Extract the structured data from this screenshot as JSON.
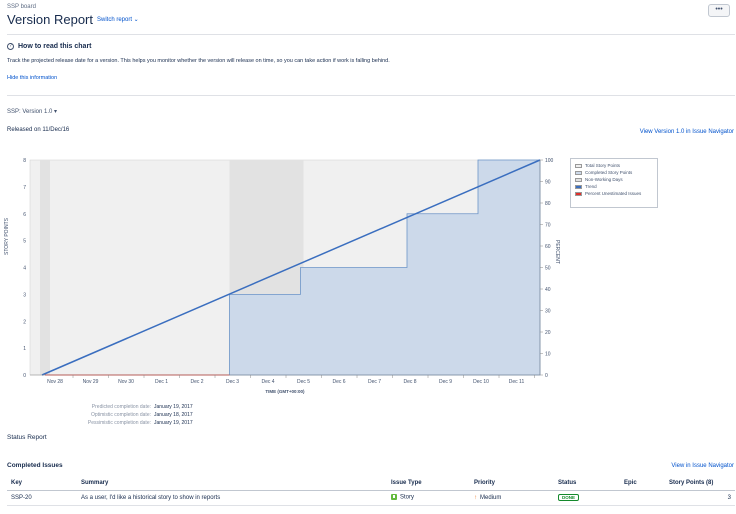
{
  "header": {
    "board_name": "SSP board",
    "title": "Version Report",
    "switch_report": "Switch report ⌄",
    "more_label": "•••"
  },
  "help": {
    "title": "How to read this chart",
    "description": "Track the projected release date for a version. This helps you monitor whether the version will release on time, so you can take action if work is falling behind.",
    "hide_link": "Hide this information"
  },
  "version": {
    "selector": "SSP: Version 1.0 ▾",
    "released_on": "Released on 11/Dec/16",
    "navigator_link": "View Version 1.0 in Issue Navigator"
  },
  "chart_data": {
    "type": "area",
    "x_label": "TIME (GMT+00:00)",
    "y_label": "STORY POINTS",
    "y2_label": "PERCENT",
    "x_ticks": [
      "Nov 28",
      "Nov 29",
      "Nov 30",
      "Dec 1",
      "Dec 2",
      "Dec 3",
      "Dec 4",
      "Dec 5",
      "Dec 6",
      "Dec 7",
      "Dec 8",
      "Dec 9",
      "Dec 10",
      "Dec 11"
    ],
    "y_ticks": [
      "0",
      "1",
      "2",
      "3",
      "4",
      "5",
      "6",
      "7",
      "8"
    ],
    "y2_ticks": [
      "0",
      "10",
      "20",
      "30",
      "40",
      "50",
      "60",
      "70",
      "80",
      "90",
      "100"
    ],
    "ylim": [
      0,
      8
    ],
    "y2lim": [
      0,
      100
    ],
    "completed_story_points": [
      {
        "x": "Dec 3",
        "y": 3
      },
      {
        "x": "Dec 5",
        "y": 4
      },
      {
        "x": "Dec 8",
        "y": 6
      },
      {
        "x": "Dec 10",
        "y": 8
      }
    ],
    "trend": {
      "from": {
        "x": "Nov 28",
        "y": 0
      },
      "to": {
        "x": "Dec 11",
        "y": 8
      }
    },
    "non_working_ranges": [
      [
        "Dec 3",
        "Dec 5"
      ]
    ],
    "legend": [
      {
        "name": "Total Story Points",
        "color": "#f0f0f0"
      },
      {
        "name": "Completed Story Points",
        "color": "#ccd9ea"
      },
      {
        "name": "Non-Working Days",
        "color": "#e2e2e2"
      },
      {
        "name": "Trend",
        "color": "#3a6ebf"
      },
      {
        "name": "Percent Unestimated Issues",
        "color": "#e0302b"
      }
    ],
    "legend_position": "right",
    "colors": {
      "completed": "#ccd9ea",
      "completed_stroke": "#6c94c7",
      "trend": "#3a6ebf",
      "total": "#f0f0f0",
      "non_working": "#e2e2e2",
      "unestimated": "#e0302b"
    }
  },
  "predictions": [
    {
      "label": "Predicted completion date:",
      "value": "January 19, 2017"
    },
    {
      "label": "Optimistic completion date:",
      "value": "January 18, 2017"
    },
    {
      "label": "Pessimistic completion date:",
      "value": "January 19, 2017"
    }
  ],
  "status_report": "Status Report",
  "completed": {
    "title": "Completed Issues",
    "navigator_link": "View in Issue Navigator",
    "columns": [
      "Key",
      "Summary",
      "Issue Type",
      "Priority",
      "Status",
      "Epic",
      "Story Points (8)"
    ],
    "rows": [
      {
        "key": "SSP-20",
        "summary": "As a user, I'd like a historical story to show in reports",
        "type": "Story",
        "priority": "Medium",
        "status": "DONE",
        "epic": "",
        "points": "3"
      }
    ]
  }
}
